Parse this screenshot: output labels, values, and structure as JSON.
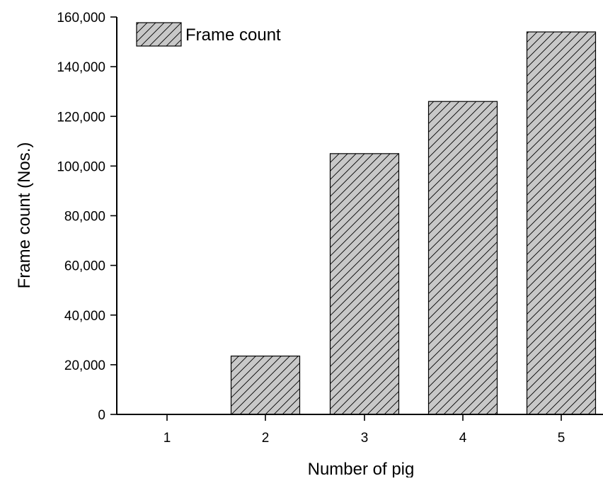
{
  "chart_data": {
    "type": "bar",
    "title": "",
    "xlabel": "Number of pig",
    "ylabel": "Frame count (Nos.)",
    "categories": [
      "1",
      "2",
      "3",
      "4",
      "5"
    ],
    "series": [
      {
        "name": "Frame count",
        "values": [
          0,
          23500,
          105000,
          126000,
          154000
        ]
      }
    ],
    "ylim": [
      0,
      160000
    ],
    "yticks": [
      0,
      20000,
      40000,
      60000,
      80000,
      100000,
      120000,
      140000,
      160000
    ],
    "ytick_labels": [
      "0",
      "20,000",
      "40,000",
      "60,000",
      "80,000",
      "100,000",
      "120,000",
      "140,000",
      "160,000"
    ],
    "grid": false,
    "legend_position": "top-left",
    "bar_fill": "#c8c8c8",
    "bar_hatch": "diagonal",
    "bar_stroke": "#000000"
  }
}
